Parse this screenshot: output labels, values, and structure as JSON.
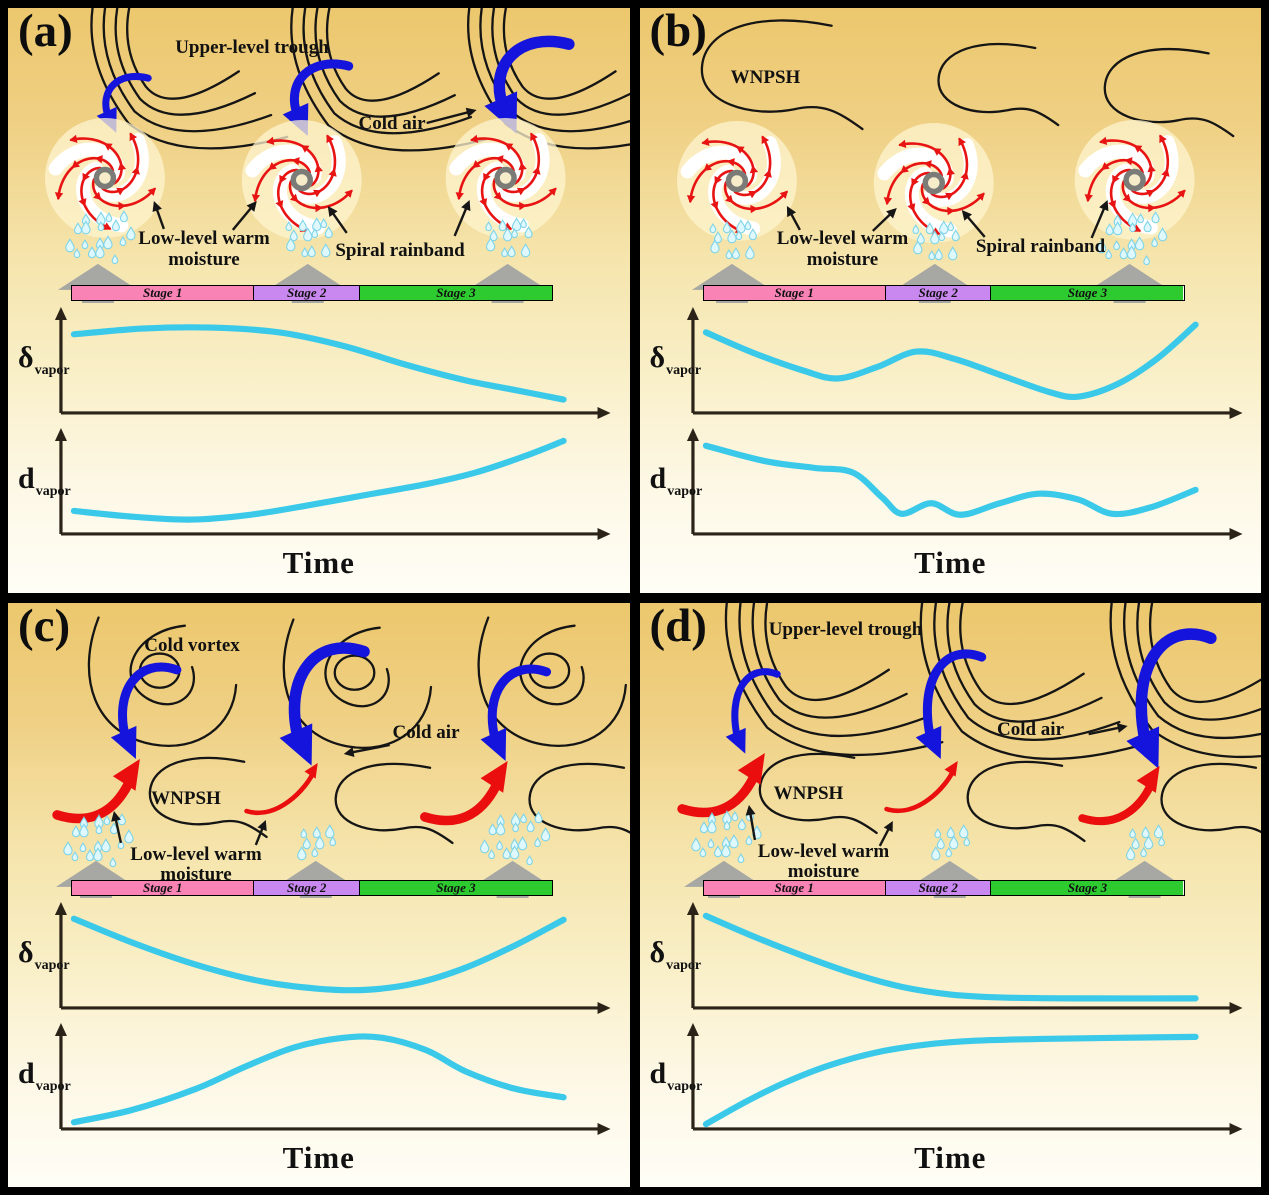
{
  "colors": {
    "background_top": "#ecc76d",
    "background_bottom": "#fffef6",
    "curve": "#3bc9e9",
    "axis": "#2b2318",
    "stage1": "#f883b4",
    "stage2": "#c988ef",
    "stage3": "#2ecb30",
    "typhoon_red": "#e81414",
    "cold_blue": "#1414dd",
    "warm_red": "#ea0e0e",
    "contour_black": "#151515",
    "rain_fill": "#dff8fd",
    "rain_stroke": "#7fd4e8",
    "updraft_gray": "#a7a7a3"
  },
  "stage_bar": {
    "labels": [
      "Stage 1",
      "Stage 2",
      "Stage 3"
    ],
    "widths_pct": [
      38,
      22,
      40
    ]
  },
  "axes": {
    "delta_symbol": "δ",
    "d_symbol": "d",
    "subscript": "vapor",
    "time_label": "Time"
  },
  "panels": [
    {
      "id": "a",
      "label": "(a)",
      "annotations": {
        "upper_trough": "Upper-level trough",
        "cold_air": "Cold air",
        "low_level": "Low-level warm moisture",
        "spiral_rainband": "Spiral rainband"
      },
      "scenes": [
        {
          "rain": "heavy",
          "cold_arrow": "small"
        },
        {
          "rain": "medium",
          "cold_arrow": "medium"
        },
        {
          "rain": "medium",
          "cold_arrow": "large"
        }
      ],
      "chart_data": {
        "type": "line",
        "x_axis_label": "Time",
        "series": [
          {
            "name": "δ_vapor",
            "points": [
              [
                0,
                82
              ],
              [
                14,
                88
              ],
              [
                28,
                89
              ],
              [
                42,
                84
              ],
              [
                55,
                70
              ],
              [
                68,
                50
              ],
              [
                80,
                34
              ],
              [
                90,
                24
              ],
              [
                100,
                14
              ]
            ]
          },
          {
            "name": "d_vapor",
            "points": [
              [
                0,
                24
              ],
              [
                12,
                18
              ],
              [
                24,
                15
              ],
              [
                36,
                20
              ],
              [
                48,
                30
              ],
              [
                60,
                41
              ],
              [
                72,
                52
              ],
              [
                82,
                64
              ],
              [
                92,
                81
              ],
              [
                100,
                97
              ]
            ]
          }
        ]
      }
    },
    {
      "id": "b",
      "label": "(b)",
      "annotations": {
        "wnpsh": "WNPSH",
        "low_level": "Low-level warm moisture",
        "spiral_rainband": "Spiral rainband"
      },
      "scenes": [
        {
          "rain": "medium"
        },
        {
          "rain": "medium"
        },
        {
          "rain": "heavy"
        }
      ],
      "chart_data": {
        "type": "line",
        "x_axis_label": "Time",
        "series": [
          {
            "name": "δ_vapor",
            "points": [
              [
                0,
                84
              ],
              [
                10,
                62
              ],
              [
                20,
                44
              ],
              [
                27,
                36
              ],
              [
                35,
                48
              ],
              [
                43,
                64
              ],
              [
                51,
                56
              ],
              [
                61,
                38
              ],
              [
                70,
                22
              ],
              [
                76,
                17
              ],
              [
                84,
                30
              ],
              [
                92,
                56
              ],
              [
                100,
                92
              ]
            ]
          },
          {
            "name": "d_vapor",
            "points": [
              [
                0,
                92
              ],
              [
                12,
                76
              ],
              [
                22,
                69
              ],
              [
                30,
                64
              ],
              [
                36,
                38
              ],
              [
                40,
                21
              ],
              [
                46,
                32
              ],
              [
                52,
                20
              ],
              [
                60,
                32
              ],
              [
                68,
                42
              ],
              [
                76,
                36
              ],
              [
                83,
                21
              ],
              [
                91,
                28
              ],
              [
                100,
                46
              ]
            ]
          }
        ]
      }
    },
    {
      "id": "c",
      "label": "(c)",
      "annotations": {
        "cold_vortex": "Cold vortex",
        "cold_air": "Cold air",
        "wnpsh": "WNPSH",
        "low_level": "Low-level warm moisture"
      },
      "scenes": [
        {
          "rain": "heavy",
          "cold_arrow": "medium",
          "warm_arrow": "large"
        },
        {
          "rain": "light",
          "cold_arrow": "large",
          "warm_arrow": "small"
        },
        {
          "rain": "heavy",
          "cold_arrow": "medium",
          "warm_arrow": "large"
        }
      ],
      "chart_data": {
        "type": "line",
        "x_axis_label": "Time",
        "series": [
          {
            "name": "δ_vapor",
            "points": [
              [
                0,
                93
              ],
              [
                12,
                68
              ],
              [
                25,
                45
              ],
              [
                38,
                28
              ],
              [
                50,
                20
              ],
              [
                60,
                19
              ],
              [
                70,
                26
              ],
              [
                80,
                42
              ],
              [
                90,
                65
              ],
              [
                100,
                92
              ]
            ]
          },
          {
            "name": "d_vapor",
            "points": [
              [
                0,
                7
              ],
              [
                12,
                20
              ],
              [
                25,
                42
              ],
              [
                35,
                65
              ],
              [
                45,
                85
              ],
              [
                55,
                95
              ],
              [
                63,
                95
              ],
              [
                72,
                82
              ],
              [
                80,
                60
              ],
              [
                90,
                42
              ],
              [
                100,
                33
              ]
            ]
          }
        ]
      }
    },
    {
      "id": "d",
      "label": "(d)",
      "annotations": {
        "upper_trough": "Upper-level trough",
        "cold_air": "Cold air",
        "wnpsh": "WNPSH",
        "low_level": "Low-level warm moisture"
      },
      "scenes": [
        {
          "rain": "heavy",
          "cold_arrow": "small",
          "warm_arrow": "large"
        },
        {
          "rain": "light",
          "cold_arrow": "medium",
          "warm_arrow": "small"
        },
        {
          "rain": "light",
          "cold_arrow": "large",
          "warm_arrow": "medium"
        }
      ],
      "chart_data": {
        "type": "line",
        "x_axis_label": "Time",
        "series": [
          {
            "name": "δ_vapor",
            "points": [
              [
                0,
                96
              ],
              [
                10,
                74
              ],
              [
                20,
                54
              ],
              [
                30,
                36
              ],
              [
                40,
                22
              ],
              [
                50,
                14
              ],
              [
                60,
                11
              ],
              [
                75,
                10
              ],
              [
                100,
                10
              ]
            ]
          },
          {
            "name": "d_vapor",
            "points": [
              [
                0,
                5
              ],
              [
                8,
                28
              ],
              [
                16,
                48
              ],
              [
                25,
                66
              ],
              [
                35,
                80
              ],
              [
                45,
                88
              ],
              [
                55,
                92
              ],
              [
                70,
                94
              ],
              [
                100,
                96
              ]
            ]
          }
        ]
      }
    }
  ]
}
